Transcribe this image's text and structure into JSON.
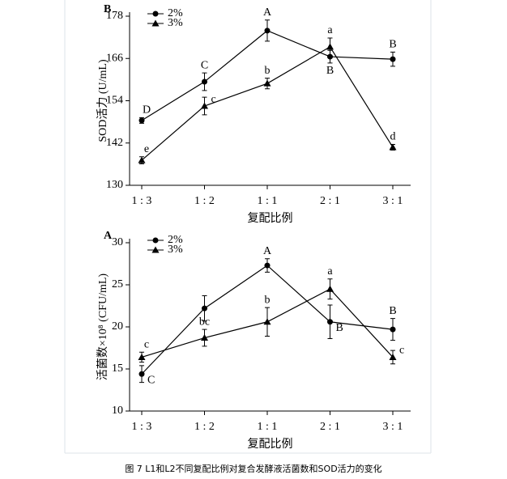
{
  "chart_data": [
    {
      "type": "line",
      "panel": "B",
      "ylabel": "SOD活力 (U/mL)",
      "xlabel": "复配比例",
      "categories": [
        "1 : 3",
        "1 : 2",
        "1 : 1",
        "2 : 1",
        "3 : 1"
      ],
      "ylim": [
        130,
        178
      ],
      "yticks": [
        130,
        142,
        154,
        166,
        178
      ],
      "legend": "upper left",
      "series": [
        {
          "name": "2%",
          "color": "#000000",
          "marker": "circle",
          "values": [
            148.4,
            159.4,
            173.9,
            166.5,
            165.8
          ],
          "errors": [
            0.8,
            2.5,
            3,
            1.8,
            2
          ],
          "labels": [
            "D",
            "C",
            "A",
            "B",
            "B"
          ]
        },
        {
          "name": "3%",
          "color": "#000000",
          "marker": "triangle",
          "values": [
            137.1,
            152.5,
            158.9,
            169.3,
            140.8
          ],
          "errors": [
            1,
            2.5,
            1.5,
            2.5,
            0.8
          ],
          "labels": [
            "e",
            "c",
            "b",
            "a",
            "d"
          ]
        }
      ]
    },
    {
      "type": "line",
      "panel": "A",
      "ylabel": "活菌数×10⁸ (CFU/mL)",
      "xlabel": "复配比例",
      "categories": [
        "1 : 3",
        "1 : 2",
        "1 : 1",
        "2 : 1",
        "3 : 1"
      ],
      "ylim": [
        10,
        30
      ],
      "yticks": [
        10,
        15,
        20,
        25,
        30
      ],
      "legend": "upper left",
      "series": [
        {
          "name": "2%",
          "color": "#000000",
          "marker": "circle",
          "values": [
            14.4,
            22.2,
            27.3,
            20.6,
            19.7
          ],
          "errors": [
            1,
            1.5,
            0.8,
            2,
            1.3
          ],
          "labels": [
            "C",
            null,
            "A",
            "B",
            "B"
          ]
        },
        {
          "name": "3%",
          "color": "#000000",
          "marker": "triangle",
          "values": [
            16.4,
            18.7,
            20.6,
            24.5,
            16.4
          ],
          "errors": [
            0.6,
            1,
            1.7,
            1.2,
            0.8
          ],
          "labels": [
            "c",
            "bc",
            "b",
            "a",
            "c"
          ]
        }
      ]
    }
  ],
  "caption": "图 7 L1和L2不同复配比例对复合发酵液活菌数和SOD活力的变化"
}
